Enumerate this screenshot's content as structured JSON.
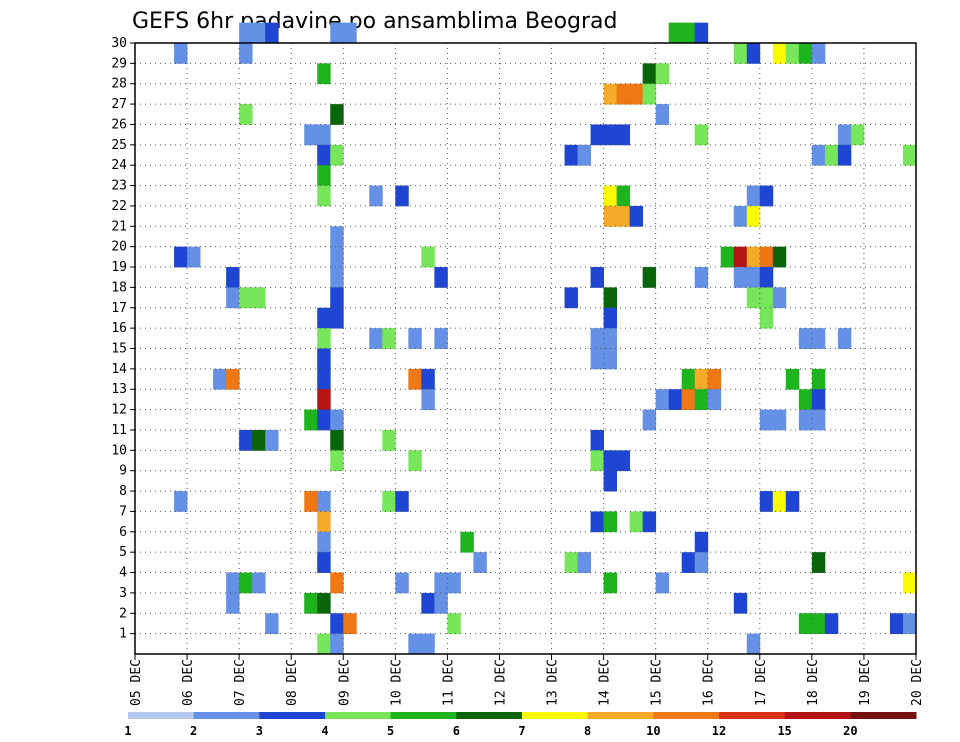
{
  "chart_data": {
    "type": "heatmap",
    "title": "GEFS 6hr padavine po ansamblima Beograd",
    "x_ticks": [
      "05 DEC",
      "06 DEC",
      "07 DEC",
      "08 DEC",
      "09 DEC",
      "10 DEC",
      "11 DEC",
      "12 DEC",
      "13 DEC",
      "14 DEC",
      "15 DEC",
      "16 DEC",
      "17 DEC",
      "18 DEC",
      "19 DEC",
      "20 DEC"
    ],
    "y_ticks": [
      1,
      2,
      3,
      4,
      5,
      6,
      7,
      8,
      9,
      10,
      11,
      12,
      13,
      14,
      15,
      16,
      17,
      18,
      19,
      20,
      21,
      22,
      23,
      24,
      25,
      26,
      27,
      28,
      29,
      30
    ],
    "xlim": [
      0,
      60
    ],
    "ylim": [
      0,
      30
    ],
    "grid": true,
    "colorbar": {
      "labels": [
        "1",
        "2",
        "3",
        "4",
        "5",
        "6",
        "7",
        "8",
        "10",
        "12",
        "15",
        "20"
      ],
      "bins": [
        {
          "label": "1-2",
          "color": "#b4c8f0"
        },
        {
          "label": "2-3",
          "color": "#6490e6"
        },
        {
          "label": "3-4",
          "color": "#1e46d2"
        },
        {
          "label": "4-5",
          "color": "#78e65a"
        },
        {
          "label": "5-6",
          "color": "#1eb41e"
        },
        {
          "label": "6-7",
          "color": "#0a640a"
        },
        {
          "label": "7-8",
          "color": "#fafa00"
        },
        {
          "label": "8-10",
          "color": "#f5aa28"
        },
        {
          "label": "10-12",
          "color": "#f07814"
        },
        {
          "label": "12-15",
          "color": "#dc3214"
        },
        {
          "label": "15-20",
          "color": "#b41414"
        },
        {
          "label": "20+",
          "color": "#781010"
        }
      ]
    },
    "cells": [
      [
        8,
        30,
        1
      ],
      [
        9,
        30,
        1
      ],
      [
        10,
        30,
        2
      ],
      [
        15,
        30,
        1
      ],
      [
        16,
        30,
        1
      ],
      [
        41,
        30,
        4
      ],
      [
        42,
        30,
        4
      ],
      [
        43,
        30,
        2
      ],
      [
        3,
        29,
        1
      ],
      [
        8,
        29,
        1
      ],
      [
        46,
        29,
        3
      ],
      [
        47,
        29,
        2
      ],
      [
        49,
        29,
        6
      ],
      [
        50,
        29,
        3
      ],
      [
        51,
        29,
        4
      ],
      [
        52,
        29,
        1
      ],
      [
        14,
        28,
        4
      ],
      [
        39,
        28,
        5
      ],
      [
        40,
        28,
        3
      ],
      [
        36,
        27,
        7
      ],
      [
        37,
        27,
        8
      ],
      [
        38,
        27,
        8
      ],
      [
        39,
        27,
        3
      ],
      [
        8,
        26,
        3
      ],
      [
        15,
        26,
        5
      ],
      [
        40,
        26,
        1
      ],
      [
        13,
        25,
        1
      ],
      [
        14,
        25,
        1
      ],
      [
        35,
        25,
        2
      ],
      [
        36,
        25,
        2
      ],
      [
        37,
        25,
        2
      ],
      [
        43,
        25,
        3
      ],
      [
        54,
        25,
        1
      ],
      [
        55,
        25,
        3
      ],
      [
        14,
        24,
        2
      ],
      [
        15,
        24,
        3
      ],
      [
        33,
        24,
        2
      ],
      [
        34,
        24,
        1
      ],
      [
        52,
        24,
        1
      ],
      [
        53,
        24,
        3
      ],
      [
        54,
        24,
        2
      ],
      [
        59,
        24,
        3
      ],
      [
        14,
        23,
        4
      ],
      [
        14,
        22,
        3
      ],
      [
        18,
        22,
        1
      ],
      [
        20,
        22,
        2
      ],
      [
        36,
        22,
        6
      ],
      [
        37,
        22,
        4
      ],
      [
        47,
        22,
        1
      ],
      [
        48,
        22,
        2
      ],
      [
        36,
        21,
        7
      ],
      [
        37,
        21,
        7
      ],
      [
        38,
        21,
        2
      ],
      [
        46,
        21,
        1
      ],
      [
        47,
        21,
        6
      ],
      [
        15,
        20,
        1
      ],
      [
        3,
        19,
        2
      ],
      [
        4,
        19,
        1
      ],
      [
        15,
        19,
        1
      ],
      [
        22,
        19,
        3
      ],
      [
        45,
        19,
        4
      ],
      [
        46,
        19,
        10
      ],
      [
        47,
        19,
        7
      ],
      [
        48,
        19,
        8
      ],
      [
        49,
        19,
        5
      ],
      [
        7,
        18,
        2
      ],
      [
        15,
        18,
        1
      ],
      [
        23,
        18,
        2
      ],
      [
        35,
        18,
        2
      ],
      [
        39,
        18,
        5
      ],
      [
        43,
        18,
        1
      ],
      [
        46,
        18,
        1
      ],
      [
        47,
        18,
        1
      ],
      [
        48,
        18,
        2
      ],
      [
        7,
        17,
        1
      ],
      [
        8,
        17,
        3
      ],
      [
        9,
        17,
        3
      ],
      [
        15,
        17,
        2
      ],
      [
        33,
        17,
        2
      ],
      [
        36,
        17,
        5
      ],
      [
        47,
        17,
        3
      ],
      [
        48,
        17,
        3
      ],
      [
        49,
        17,
        1
      ],
      [
        14,
        16,
        2
      ],
      [
        15,
        16,
        2
      ],
      [
        36,
        16,
        2
      ],
      [
        48,
        16,
        3
      ],
      [
        14,
        15,
        3
      ],
      [
        18,
        15,
        1
      ],
      [
        19,
        15,
        3
      ],
      [
        21,
        15,
        1
      ],
      [
        23,
        15,
        1
      ],
      [
        35,
        15,
        1
      ],
      [
        36,
        15,
        1
      ],
      [
        51,
        15,
        1
      ],
      [
        52,
        15,
        1
      ],
      [
        54,
        15,
        1
      ],
      [
        14,
        14,
        2
      ],
      [
        35,
        14,
        1
      ],
      [
        36,
        14,
        1
      ],
      [
        6,
        13,
        1
      ],
      [
        7,
        13,
        8
      ],
      [
        14,
        13,
        2
      ],
      [
        21,
        13,
        8
      ],
      [
        22,
        13,
        2
      ],
      [
        42,
        13,
        4
      ],
      [
        43,
        13,
        7
      ],
      [
        44,
        13,
        8
      ],
      [
        50,
        13,
        4
      ],
      [
        52,
        13,
        4
      ],
      [
        14,
        12,
        10
      ],
      [
        22,
        12,
        1
      ],
      [
        40,
        12,
        1
      ],
      [
        41,
        12,
        2
      ],
      [
        42,
        12,
        8
      ],
      [
        43,
        12,
        4
      ],
      [
        44,
        12,
        1
      ],
      [
        51,
        12,
        4
      ],
      [
        52,
        12,
        2
      ],
      [
        13,
        11,
        4
      ],
      [
        14,
        11,
        2
      ],
      [
        15,
        11,
        1
      ],
      [
        39,
        11,
        1
      ],
      [
        48,
        11,
        1
      ],
      [
        49,
        11,
        1
      ],
      [
        51,
        11,
        1
      ],
      [
        52,
        11,
        1
      ],
      [
        8,
        10,
        2
      ],
      [
        9,
        10,
        5
      ],
      [
        10,
        10,
        1
      ],
      [
        15,
        10,
        5
      ],
      [
        19,
        10,
        3
      ],
      [
        35,
        10,
        2
      ],
      [
        15,
        9,
        3
      ],
      [
        21,
        9,
        3
      ],
      [
        35,
        9,
        3
      ],
      [
        36,
        9,
        2
      ],
      [
        37,
        9,
        2
      ],
      [
        36,
        8,
        2
      ],
      [
        3,
        7,
        1
      ],
      [
        13,
        7,
        8
      ],
      [
        14,
        7,
        1
      ],
      [
        19,
        7,
        3
      ],
      [
        20,
        7,
        2
      ],
      [
        48,
        7,
        2
      ],
      [
        49,
        7,
        6
      ],
      [
        50,
        7,
        2
      ],
      [
        14,
        6,
        7
      ],
      [
        35,
        6,
        2
      ],
      [
        36,
        6,
        4
      ],
      [
        38,
        6,
        3
      ],
      [
        39,
        6,
        2
      ],
      [
        14,
        5,
        1
      ],
      [
        25,
        5,
        4
      ],
      [
        43,
        5,
        2
      ],
      [
        14,
        4,
        2
      ],
      [
        26,
        4,
        1
      ],
      [
        33,
        4,
        3
      ],
      [
        34,
        4,
        1
      ],
      [
        42,
        4,
        2
      ],
      [
        43,
        4,
        1
      ],
      [
        52,
        4,
        5
      ],
      [
        7,
        3,
        1
      ],
      [
        8,
        3,
        4
      ],
      [
        9,
        3,
        1
      ],
      [
        15,
        3,
        8
      ],
      [
        20,
        3,
        1
      ],
      [
        23,
        3,
        1
      ],
      [
        24,
        3,
        1
      ],
      [
        36,
        3,
        4
      ],
      [
        40,
        3,
        1
      ],
      [
        59,
        3,
        6
      ],
      [
        7,
        2,
        1
      ],
      [
        13,
        2,
        4
      ],
      [
        14,
        2,
        5
      ],
      [
        22,
        2,
        2
      ],
      [
        23,
        2,
        1
      ],
      [
        46,
        2,
        2
      ],
      [
        10,
        1,
        1
      ],
      [
        15,
        1,
        2
      ],
      [
        16,
        1,
        8
      ],
      [
        24,
        1,
        3
      ],
      [
        51,
        1,
        4
      ],
      [
        52,
        1,
        4
      ],
      [
        53,
        1,
        2
      ],
      [
        58,
        1,
        2
      ],
      [
        59,
        1,
        1
      ],
      [
        14,
        0,
        3
      ],
      [
        15,
        0,
        1
      ],
      [
        21,
        0,
        1
      ],
      [
        22,
        0,
        1
      ],
      [
        47,
        0,
        1
      ]
    ]
  }
}
